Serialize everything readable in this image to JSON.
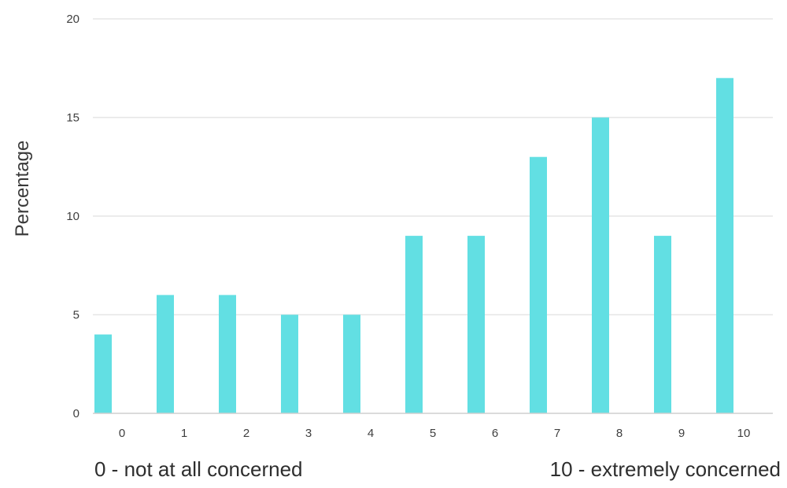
{
  "chart_data": {
    "type": "bar",
    "categories": [
      "0",
      "1",
      "2",
      "3",
      "4",
      "5",
      "6",
      "7",
      "8",
      "9",
      "10"
    ],
    "values": [
      4,
      6,
      6,
      5,
      5,
      9,
      9,
      13,
      15,
      9,
      17
    ],
    "title": "",
    "xlabel": "",
    "ylabel": "Percentage",
    "ylim": [
      0,
      20
    ],
    "yticks": [
      "0",
      "5",
      "10",
      "15",
      "20"
    ],
    "grid": true,
    "legend": "none",
    "bar_color": "#62dfe3",
    "grid_color": "#e6e6e6",
    "axis_color": "#cfcfcf"
  },
  "scale_notes": {
    "left": "0 - not at all concerned",
    "right": "10 - extremely concerned"
  }
}
